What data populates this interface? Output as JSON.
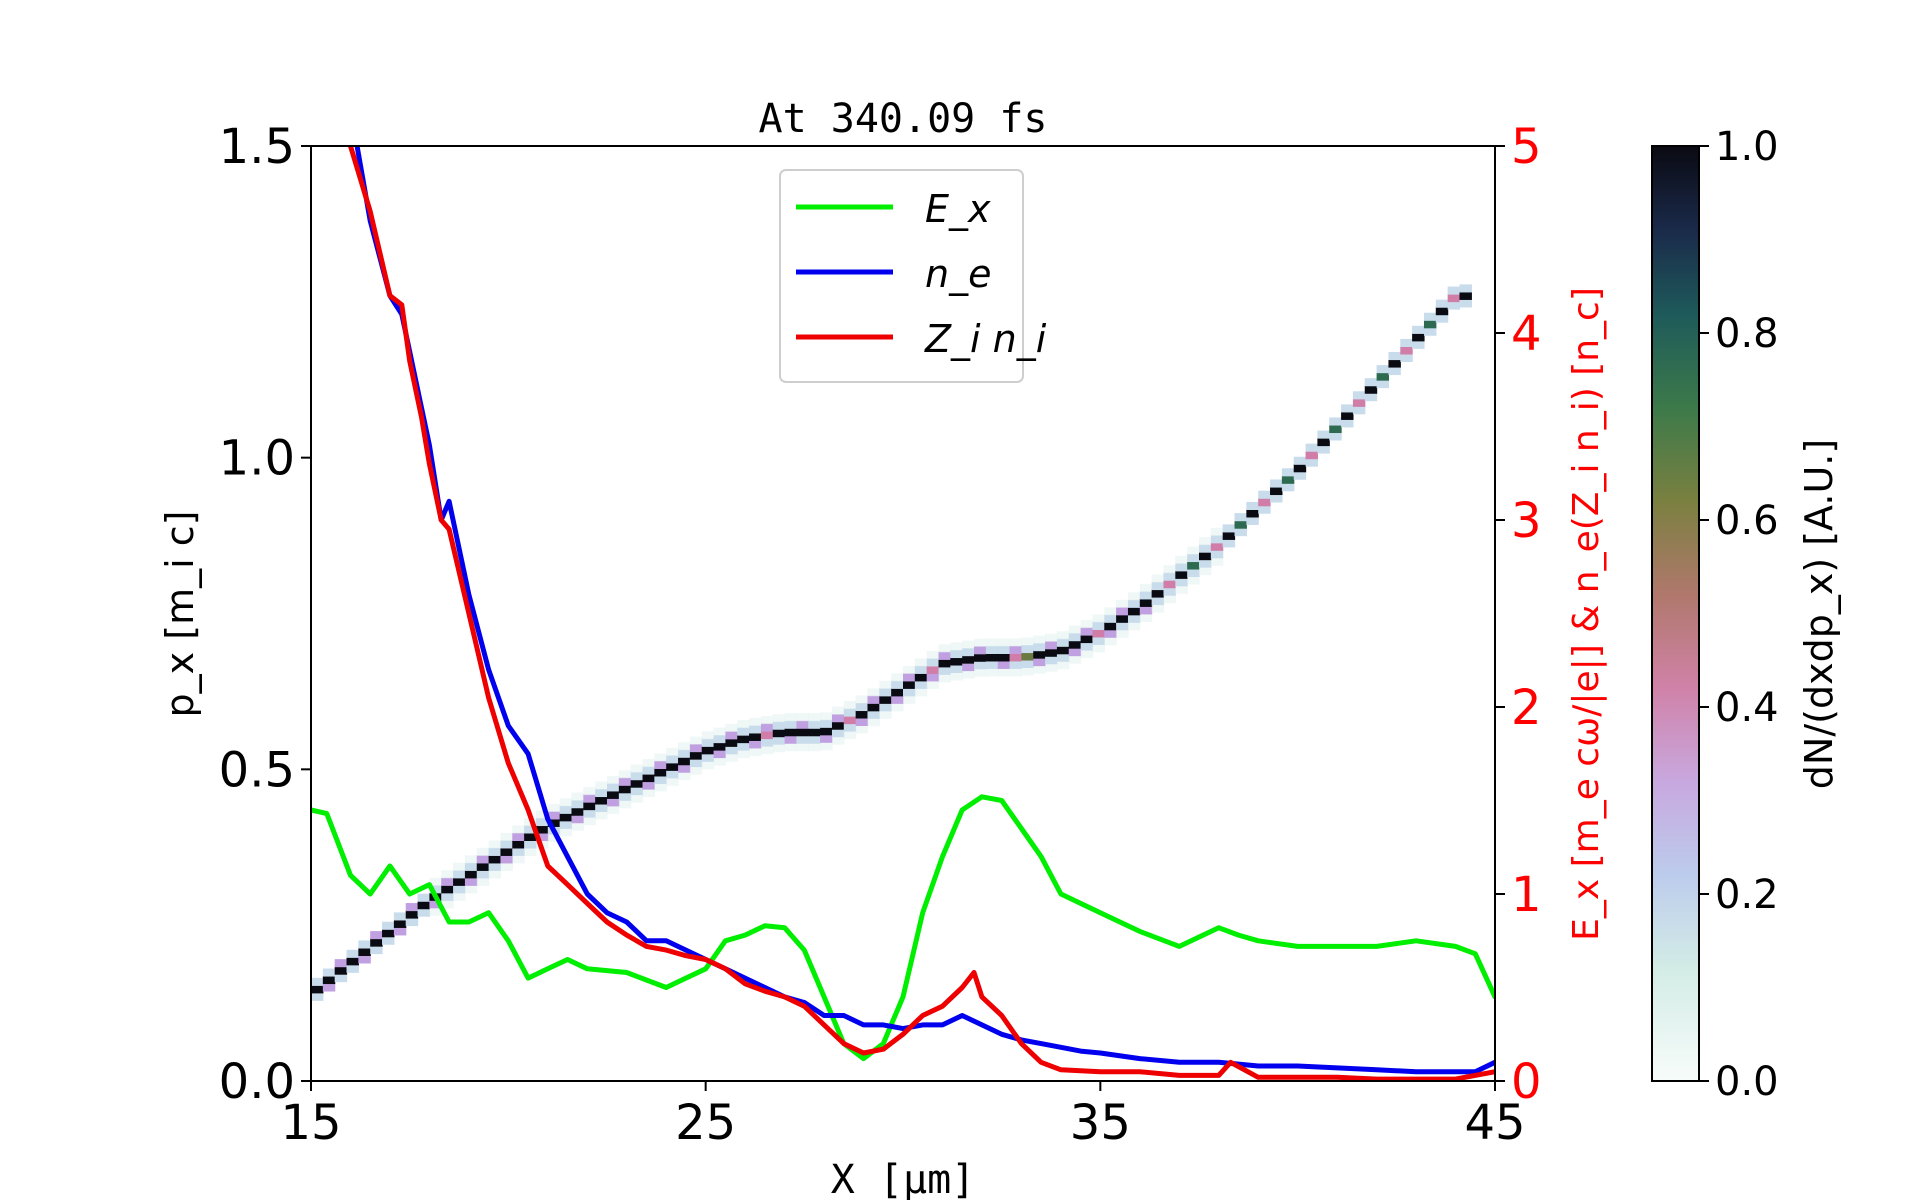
{
  "chart_data": {
    "type": "line",
    "title": "At 340.09 fs",
    "xlabel": "X [μm]",
    "ylabel_left": "p_x [m_i c]",
    "ylabel_right": "E_x [m_e cω/|e|] & n_e(Z_i n_i) [n_c]",
    "colorbar_label": "dN/(dxdp_x) [A.U.]",
    "xlim": [
      15,
      45
    ],
    "ylim_left": [
      0,
      1.5
    ],
    "ylim_right": [
      0,
      5
    ],
    "colorbar_range": [
      0,
      1.0
    ],
    "x_ticks": [
      "15",
      "25",
      "35",
      "45"
    ],
    "y_left_ticks": [
      "0.0",
      "0.5",
      "1.0",
      "1.5"
    ],
    "y_right_ticks": [
      "0",
      "1",
      "2",
      "3",
      "4",
      "5"
    ],
    "colorbar_ticks": [
      "0.0",
      "0.2",
      "0.4",
      "0.6",
      "0.8",
      "1.0"
    ],
    "grid": false,
    "legend_position": "top-center",
    "legend": [
      "E_x",
      "n_e",
      "Z_i n_i"
    ],
    "colors": {
      "E_x": "#00ee00",
      "n_e": "#0000ee",
      "Z_i n_i": "#ee0000",
      "right_axis": "#ff0000"
    },
    "series": [
      {
        "name": "E_x",
        "axis": "right",
        "x": [
          15.0,
          15.4,
          16.0,
          16.5,
          17.0,
          17.5,
          18.0,
          18.5,
          19.0,
          19.5,
          20.0,
          20.5,
          21.0,
          21.5,
          22.0,
          23.0,
          24.0,
          24.5,
          25.0,
          25.5,
          26.0,
          26.5,
          27.0,
          27.5,
          28.0,
          28.5,
          29.0,
          29.5,
          30.0,
          30.5,
          31.0,
          31.5,
          32.0,
          32.5,
          33.0,
          33.5,
          34.0,
          35.0,
          36.0,
          37.0,
          38.0,
          38.5,
          39.0,
          40.0,
          41.0,
          42.0,
          43.0,
          44.0,
          44.5,
          45.0
        ],
        "y": [
          1.45,
          1.43,
          1.1,
          1.0,
          1.15,
          1.0,
          1.05,
          0.85,
          0.85,
          0.9,
          0.75,
          0.55,
          0.6,
          0.65,
          0.6,
          0.58,
          0.5,
          0.55,
          0.6,
          0.75,
          0.78,
          0.83,
          0.82,
          0.7,
          0.45,
          0.2,
          0.12,
          0.2,
          0.45,
          0.9,
          1.2,
          1.45,
          1.52,
          1.5,
          1.35,
          1.2,
          1.0,
          0.9,
          0.8,
          0.72,
          0.82,
          0.78,
          0.75,
          0.72,
          0.72,
          0.72,
          0.75,
          0.72,
          0.68,
          0.45
        ]
      },
      {
        "name": "n_e",
        "axis": "right",
        "x": [
          16.0,
          16.5,
          17.0,
          17.3,
          17.5,
          17.8,
          18.0,
          18.3,
          18.5,
          19.0,
          19.5,
          20.0,
          20.5,
          21.0,
          21.5,
          22.0,
          22.5,
          23.0,
          23.5,
          24.0,
          24.5,
          25.0,
          25.5,
          26.0,
          26.5,
          27.0,
          27.5,
          28.0,
          28.5,
          29.0,
          29.5,
          30.0,
          30.5,
          31.0,
          31.5,
          32.0,
          32.5,
          33.0,
          33.5,
          34.0,
          34.5,
          35.0,
          36.0,
          37.0,
          38.0,
          39.0,
          40.0,
          41.0,
          42.0,
          43.0,
          44.0,
          44.5,
          45.0
        ],
        "y": [
          5.2,
          4.6,
          4.2,
          4.1,
          3.9,
          3.6,
          3.4,
          3.0,
          3.1,
          2.6,
          2.2,
          1.9,
          1.75,
          1.4,
          1.2,
          1.0,
          0.9,
          0.85,
          0.75,
          0.75,
          0.7,
          0.65,
          0.6,
          0.55,
          0.5,
          0.45,
          0.42,
          0.35,
          0.35,
          0.3,
          0.3,
          0.28,
          0.3,
          0.3,
          0.35,
          0.3,
          0.25,
          0.22,
          0.2,
          0.18,
          0.16,
          0.15,
          0.12,
          0.1,
          0.1,
          0.08,
          0.08,
          0.07,
          0.06,
          0.05,
          0.05,
          0.05,
          0.1
        ]
      },
      {
        "name": "Z_i n_i",
        "axis": "right",
        "x": [
          16.0,
          16.5,
          17.0,
          17.3,
          17.5,
          17.8,
          18.0,
          18.3,
          18.5,
          19.0,
          19.5,
          20.0,
          20.5,
          21.0,
          21.5,
          22.0,
          22.5,
          23.0,
          23.5,
          24.0,
          24.5,
          25.0,
          25.5,
          26.0,
          26.5,
          27.0,
          27.5,
          28.0,
          28.5,
          29.0,
          29.5,
          30.0,
          30.5,
          31.0,
          31.5,
          31.8,
          32.0,
          32.5,
          33.0,
          33.5,
          34.0,
          35.0,
          36.0,
          37.0,
          38.0,
          38.3,
          39.0,
          40.0,
          41.0,
          42.0,
          43.0,
          44.0,
          45.0
        ],
        "y": [
          5.0,
          4.65,
          4.2,
          4.15,
          3.85,
          3.55,
          3.3,
          3.0,
          2.95,
          2.5,
          2.05,
          1.7,
          1.45,
          1.15,
          1.05,
          0.95,
          0.85,
          0.78,
          0.72,
          0.7,
          0.67,
          0.65,
          0.6,
          0.52,
          0.48,
          0.45,
          0.4,
          0.3,
          0.2,
          0.15,
          0.17,
          0.25,
          0.35,
          0.4,
          0.5,
          0.58,
          0.45,
          0.35,
          0.2,
          0.1,
          0.06,
          0.05,
          0.05,
          0.03,
          0.03,
          0.1,
          0.02,
          0.02,
          0.02,
          0.01,
          0.01,
          0.01,
          0.05
        ]
      },
      {
        "name": "phase_space",
        "axis": "left",
        "x": [
          15.0,
          16.0,
          17.0,
          18.0,
          19.0,
          20.0,
          21.0,
          22.0,
          23.0,
          24.0,
          25.0,
          26.0,
          27.0,
          28.0,
          29.0,
          30.0,
          31.0,
          32.0,
          33.0,
          34.0,
          35.0,
          36.0,
          37.0,
          38.0,
          39.0,
          40.0,
          41.0,
          42.0,
          43.0,
          44.0
        ],
        "y": [
          0.14,
          0.19,
          0.24,
          0.29,
          0.33,
          0.37,
          0.41,
          0.44,
          0.47,
          0.5,
          0.53,
          0.55,
          0.56,
          0.56,
          0.59,
          0.63,
          0.67,
          0.68,
          0.68,
          0.69,
          0.72,
          0.76,
          0.81,
          0.86,
          0.92,
          0.98,
          1.05,
          1.12,
          1.19,
          1.26
        ]
      }
    ]
  }
}
